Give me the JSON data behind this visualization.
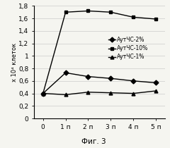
{
  "x_labels": [
    "0",
    "1 п",
    "2 п",
    "3 п",
    "4 п",
    "5 п"
  ],
  "x_values": [
    0,
    1,
    2,
    3,
    4,
    5
  ],
  "series": [
    {
      "label": "АутЧС-2%",
      "values": [
        0.4,
        0.73,
        0.67,
        0.64,
        0.6,
        0.57
      ],
      "color": "#000000",
      "marker": "D",
      "markersize": 3.5,
      "linestyle": "-"
    },
    {
      "label": "АутЧС-10%",
      "values": [
        0.4,
        1.7,
        1.72,
        1.7,
        1.62,
        1.59
      ],
      "color": "#000000",
      "marker": "s",
      "markersize": 3.5,
      "linestyle": "-"
    },
    {
      "label": "АутЧС-1%",
      "values": [
        0.4,
        0.38,
        0.42,
        0.41,
        0.4,
        0.44
      ],
      "color": "#000000",
      "marker": "^",
      "markersize": 3.5,
      "linestyle": "-"
    }
  ],
  "ylabel": "x 10⁴ клеток",
  "caption": "Фиг. 3",
  "ylim": [
    0,
    1.8
  ],
  "yticks": [
    0,
    0.2,
    0.4,
    0.6,
    0.8,
    1.0,
    1.2,
    1.4,
    1.6,
    1.8
  ],
  "ytick_labels": [
    "0",
    "0,2",
    "0,4",
    "0,6",
    "0,8",
    "1",
    "1,2",
    "1,4",
    "1,6",
    "1,8"
  ],
  "background_color": "#f5f5f0",
  "grid_color": "#cccccc",
  "tick_fontsize": 6.5,
  "ylabel_fontsize": 6.0,
  "legend_fontsize": 5.5,
  "caption_fontsize": 7.5
}
